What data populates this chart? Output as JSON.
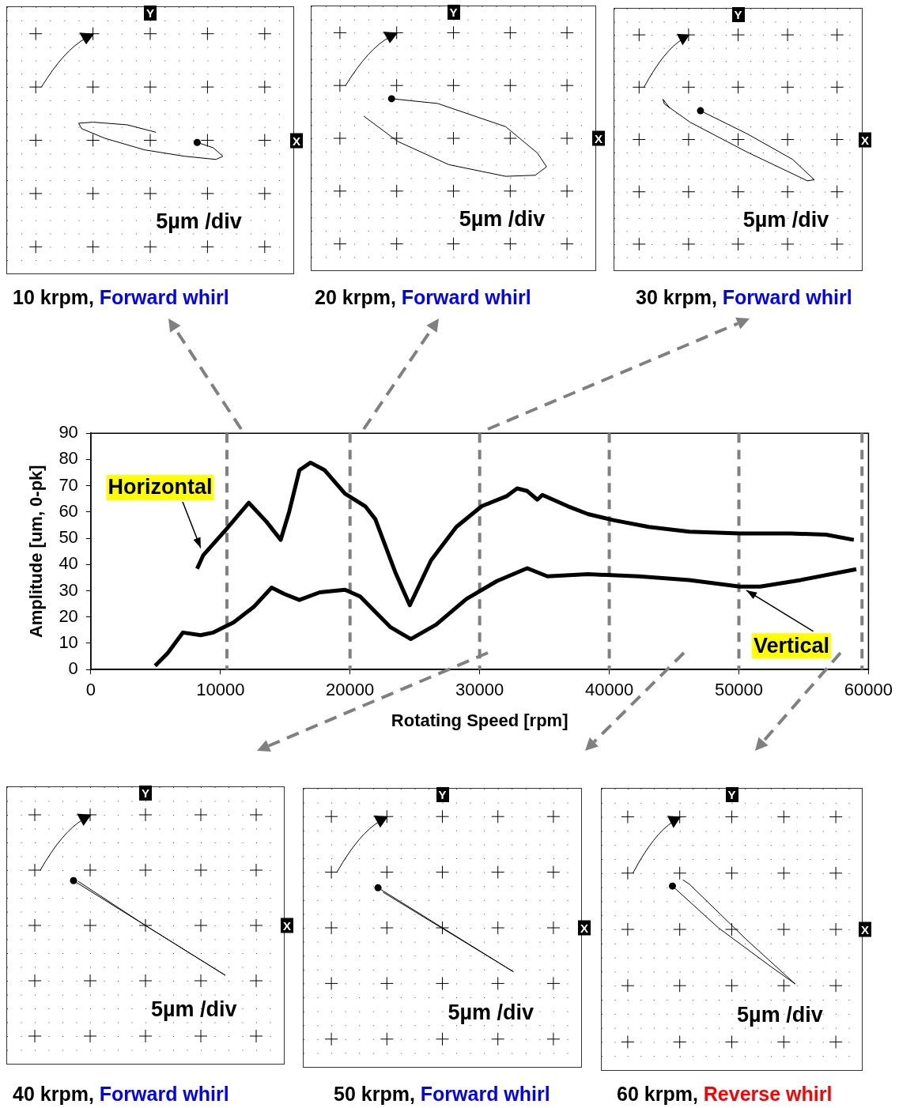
{
  "chart_data": [
    {
      "type": "other",
      "title": "10 krpm,",
      "subtitle": "Forward whirl",
      "xlabel": "X",
      "ylabel": "Y",
      "annotations": [
        "5µm /div"
      ]
    },
    {
      "type": "other",
      "title": "20 krpm,",
      "subtitle": "Forward whirl",
      "xlabel": "X",
      "ylabel": "Y",
      "annotations": [
        "5µm /div"
      ]
    },
    {
      "type": "other",
      "title": "30 krpm,",
      "subtitle": "Forward whirl",
      "xlabel": "X",
      "ylabel": "Y",
      "annotations": [
        "5µm /div"
      ]
    },
    {
      "type": "line",
      "xlabel": "Rotating Speed [rpm]",
      "ylabel": "Amplitude [um, 0-pk]",
      "xlim": [
        0,
        60000
      ],
      "ylim": [
        0,
        90
      ],
      "xticks": [
        0,
        10000,
        20000,
        30000,
        40000,
        50000,
        60000
      ],
      "yticks": [
        0,
        10,
        20,
        30,
        40,
        50,
        60,
        70,
        80,
        90
      ],
      "ref_lines": [
        {
          "axis": "x",
          "value": 10500,
          "color": "#808080",
          "line_style": "dashed"
        },
        {
          "axis": "x",
          "value": 20000,
          "color": "#808080",
          "line_style": "dashed"
        },
        {
          "axis": "x",
          "value": 30000,
          "color": "#808080",
          "line_style": "dashed"
        },
        {
          "axis": "x",
          "value": 40000,
          "color": "#808080",
          "line_style": "dashed"
        },
        {
          "axis": "x",
          "value": 50000,
          "color": "#808080",
          "line_style": "dashed"
        },
        {
          "axis": "x",
          "value": 59500,
          "color": "#808080",
          "line_style": "dashed"
        }
      ],
      "series": [
        {
          "name": "Horizontal",
          "color": "#000000",
          "x": [
            8200,
            8670,
            10430,
            12190,
            13550,
            14650,
            15310,
            16090,
            16950,
            18050,
            19610,
            21170,
            21950,
            23520,
            24610,
            26250,
            28200,
            30160,
            32110,
            32890,
            33670,
            34450,
            34840,
            36800,
            38360,
            40310,
            43050,
            46170,
            50080,
            53980,
            56720,
            58870
          ],
          "values": [
            38.4,
            43.5,
            53.3,
            63.5,
            56.3,
            49.4,
            60.2,
            75.9,
            78.8,
            75.9,
            67,
            62.2,
            57.3,
            36.7,
            24.5,
            41.6,
            54.3,
            62.2,
            66.1,
            69,
            68,
            64.7,
            66.5,
            62.2,
            59.2,
            56.9,
            54.3,
            52.5,
            51.8,
            51.8,
            51.4,
            49.4
          ]
        },
        {
          "name": "Vertical",
          "color": "#000000",
          "x": [
            4960,
            5940,
            7110,
            8480,
            9450,
            11020,
            12580,
            13950,
            14920,
            16090,
            17660,
            19610,
            20780,
            23130,
            24690,
            26640,
            28980,
            31330,
            33670,
            35230,
            38360,
            42270,
            46170,
            50080,
            51640,
            54770,
            59060
          ],
          "values": [
            1.4,
            6.3,
            14.1,
            13.1,
            14.1,
            18,
            23.9,
            31.2,
            28.8,
            26.5,
            29.4,
            30.4,
            27.8,
            16.1,
            11.6,
            17.1,
            26.9,
            33.7,
            38.6,
            35.5,
            36.3,
            35.5,
            34.1,
            31.6,
            31.6,
            34.1,
            38.2
          ]
        }
      ]
    },
    {
      "type": "other",
      "title": "40 krpm,",
      "subtitle": "Forward whirl",
      "xlabel": "X",
      "ylabel": "Y",
      "annotations": [
        "5µm /div"
      ]
    },
    {
      "type": "other",
      "title": "50 krpm,",
      "subtitle": "Forward whirl",
      "xlabel": "X",
      "ylabel": "Y",
      "annotations": [
        "5µm /div"
      ]
    },
    {
      "type": "other",
      "title": "60 krpm,",
      "subtitle": "Reverse whirl",
      "xlabel": "X",
      "ylabel": "Y",
      "annotations": [
        "5µm /div"
      ]
    }
  ]
}
